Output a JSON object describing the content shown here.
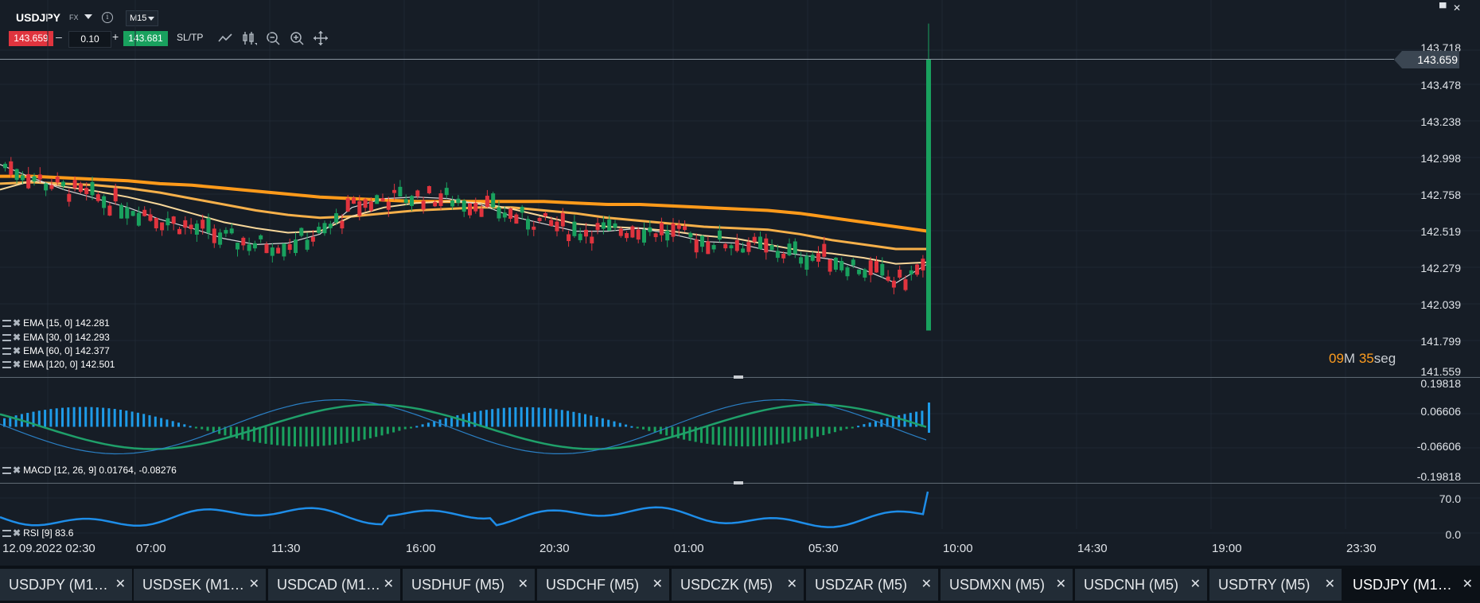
{
  "header": {
    "symbol": "USDJPY",
    "asset_class": "FX",
    "timeframe": "M15",
    "sell_price": "143.659",
    "lot_size": "0.10",
    "buy_price": "143.681",
    "sltp_label": "SL/TP",
    "minus": "–",
    "plus": "+",
    "info_glyph": "i"
  },
  "toolbar": {
    "icons": [
      "line-chart-icon",
      "candlestick-icon",
      "zoom-out-icon",
      "zoom-in-icon",
      "crosshair-icon"
    ]
  },
  "window_controls": {
    "maximize": "▀",
    "close": "✕"
  },
  "price_axis": [
    "143.718",
    "143.478",
    "143.238",
    "142.998",
    "142.758",
    "142.519",
    "142.279",
    "142.039",
    "141.799",
    "141.559"
  ],
  "current_price": "143.659",
  "timer": {
    "minutes": "09",
    "m": "M",
    "seconds": "35",
    "s": "seg"
  },
  "macd_axis": [
    "0.19818",
    "0.06606",
    "-0.06606",
    "-0.19818"
  ],
  "rsi_axis": [
    "70.0",
    "0.0"
  ],
  "time_axis": [
    "12.09.2022 02:30",
    "07:00",
    "11:30",
    "16:00",
    "20:30",
    "01:00",
    "05:30",
    "10:00",
    "14:30",
    "19:00",
    "23:30"
  ],
  "legends": {
    "ema15": "EMA [15, 0] 142.281",
    "ema30": "EMA [30, 0] 142.293",
    "ema60": "EMA [60, 0] 142.377",
    "ema120": "EMA [120, 0] 142.501",
    "macd": "MACD [12, 26, 9] 0.01764, -0.08276",
    "rsi": "RSI [9] 83.6"
  },
  "colors": {
    "background": "#161d26",
    "bull": "#19a15e",
    "bear": "#e0343e",
    "ema120": "#ff9a1a",
    "ema60": "#f6b04a",
    "ema30": "#f7d79a",
    "ema15": "#d9d9d9",
    "macd_hist_pos": "#1e9be8",
    "macd_hist_neg": "#19a15e",
    "rsi": "#1e8de8"
  },
  "tabs": [
    {
      "label": "USDJPY (M1…",
      "close": "✕"
    },
    {
      "label": "USDSEK (M1…",
      "close": "✕"
    },
    {
      "label": "USDCAD (M1…",
      "close": "✕"
    },
    {
      "label": "USDHUF (M5)",
      "close": "✕"
    },
    {
      "label": "USDCHF (M5)",
      "close": "✕"
    },
    {
      "label": "USDCZK (M5)",
      "close": "✕"
    },
    {
      "label": "USDZAR (M5)",
      "close": "✕"
    },
    {
      "label": "USDMXN (M5)",
      "close": "✕"
    },
    {
      "label": "USDCNH (M5)",
      "close": "✕"
    },
    {
      "label": "USDTRY (M5)",
      "close": "✕"
    },
    {
      "label": "USDJPY (M1…",
      "close": "✕"
    }
  ],
  "chart_data": {
    "type": "candlestick",
    "price_range": [
      141.559,
      143.78
    ],
    "ema_values": {
      "ema120": [
        142.87,
        142.87,
        142.86,
        142.85,
        142.84,
        142.82,
        142.81,
        142.79,
        142.77,
        142.75,
        142.73,
        142.72,
        142.71,
        142.7,
        142.7,
        142.7,
        142.7,
        142.7,
        142.69,
        142.68,
        142.68,
        142.67,
        142.66,
        142.65,
        142.64,
        142.62,
        142.59,
        142.56,
        142.53,
        142.5
      ],
      "ema60": [
        142.82,
        142.83,
        142.82,
        142.81,
        142.79,
        142.76,
        142.72,
        142.68,
        142.64,
        142.61,
        142.59,
        142.6,
        142.62,
        142.64,
        142.65,
        142.66,
        142.66,
        142.64,
        142.62,
        142.59,
        142.57,
        142.55,
        142.53,
        142.52,
        142.51,
        142.48,
        142.44,
        142.41,
        142.38,
        142.38
      ],
      "ema30": [
        142.78,
        142.84,
        142.8,
        142.77,
        142.73,
        142.68,
        142.62,
        142.56,
        142.52,
        142.49,
        142.5,
        142.6,
        142.66,
        142.69,
        142.7,
        142.69,
        142.65,
        142.6,
        142.55,
        142.53,
        142.52,
        142.5,
        142.47,
        142.45,
        142.41,
        142.37,
        142.35,
        142.32,
        142.28,
        142.29
      ],
      "ema15": [
        142.95,
        142.86,
        142.78,
        142.72,
        142.66,
        142.58,
        142.52,
        142.45,
        142.41,
        142.42,
        142.48,
        142.66,
        142.72,
        142.73,
        142.72,
        142.68,
        142.6,
        142.55,
        142.5,
        142.5,
        142.52,
        142.48,
        142.43,
        142.42,
        142.37,
        142.34,
        142.31,
        142.24,
        142.15,
        142.28
      ]
    },
    "last_candle": {
      "open": 141.83,
      "close": 143.659,
      "high": 143.9,
      "low": 141.83
    },
    "macd_range": [
      -0.19818,
      0.19818
    ],
    "rsi_last": 83.6
  }
}
